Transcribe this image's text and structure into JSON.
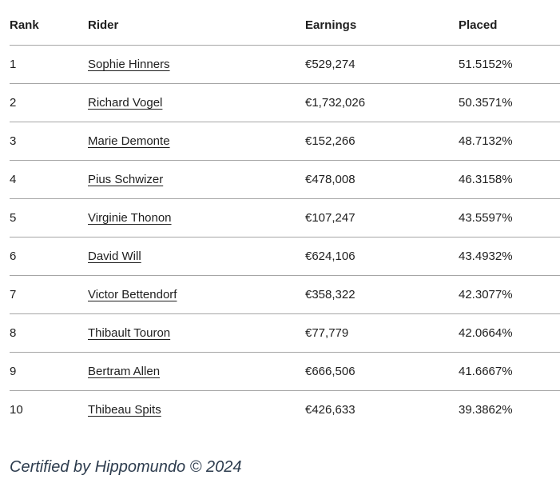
{
  "table": {
    "columns": [
      "Rank",
      "Rider",
      "Earnings",
      "Placed"
    ],
    "rows": [
      {
        "rank": "1",
        "rider": "Sophie Hinners",
        "earnings": "€529,274",
        "placed": "51.5152%"
      },
      {
        "rank": "2",
        "rider": "Richard Vogel",
        "earnings": "€1,732,026",
        "placed": "50.3571%"
      },
      {
        "rank": "3",
        "rider": "Marie Demonte",
        "earnings": "€152,266",
        "placed": "48.7132%"
      },
      {
        "rank": "4",
        "rider": "Pius Schwizer",
        "earnings": "€478,008",
        "placed": "46.3158%"
      },
      {
        "rank": "5",
        "rider": "Virginie Thonon",
        "earnings": "€107,247",
        "placed": "43.5597%"
      },
      {
        "rank": "6",
        "rider": "David Will",
        "earnings": "€624,106",
        "placed": "43.4932%"
      },
      {
        "rank": "7",
        "rider": "Victor Bettendorf",
        "earnings": "€358,322",
        "placed": "42.3077%"
      },
      {
        "rank": "8",
        "rider": "Thibault Touron",
        "earnings": "€77,779",
        "placed": "42.0664%"
      },
      {
        "rank": "9",
        "rider": "Bertram Allen",
        "earnings": "€666,506",
        "placed": "41.6667%"
      },
      {
        "rank": "10",
        "rider": "Thibeau Spits",
        "earnings": "€426,633",
        "placed": "39.3862%"
      }
    ]
  },
  "footer": {
    "text": "Certified by Hippomundo © 2024"
  },
  "colors": {
    "text": "#1e1e1e",
    "divider": "#a6a6a6",
    "footer_text": "#2d3c4e",
    "background": "#ffffff"
  }
}
